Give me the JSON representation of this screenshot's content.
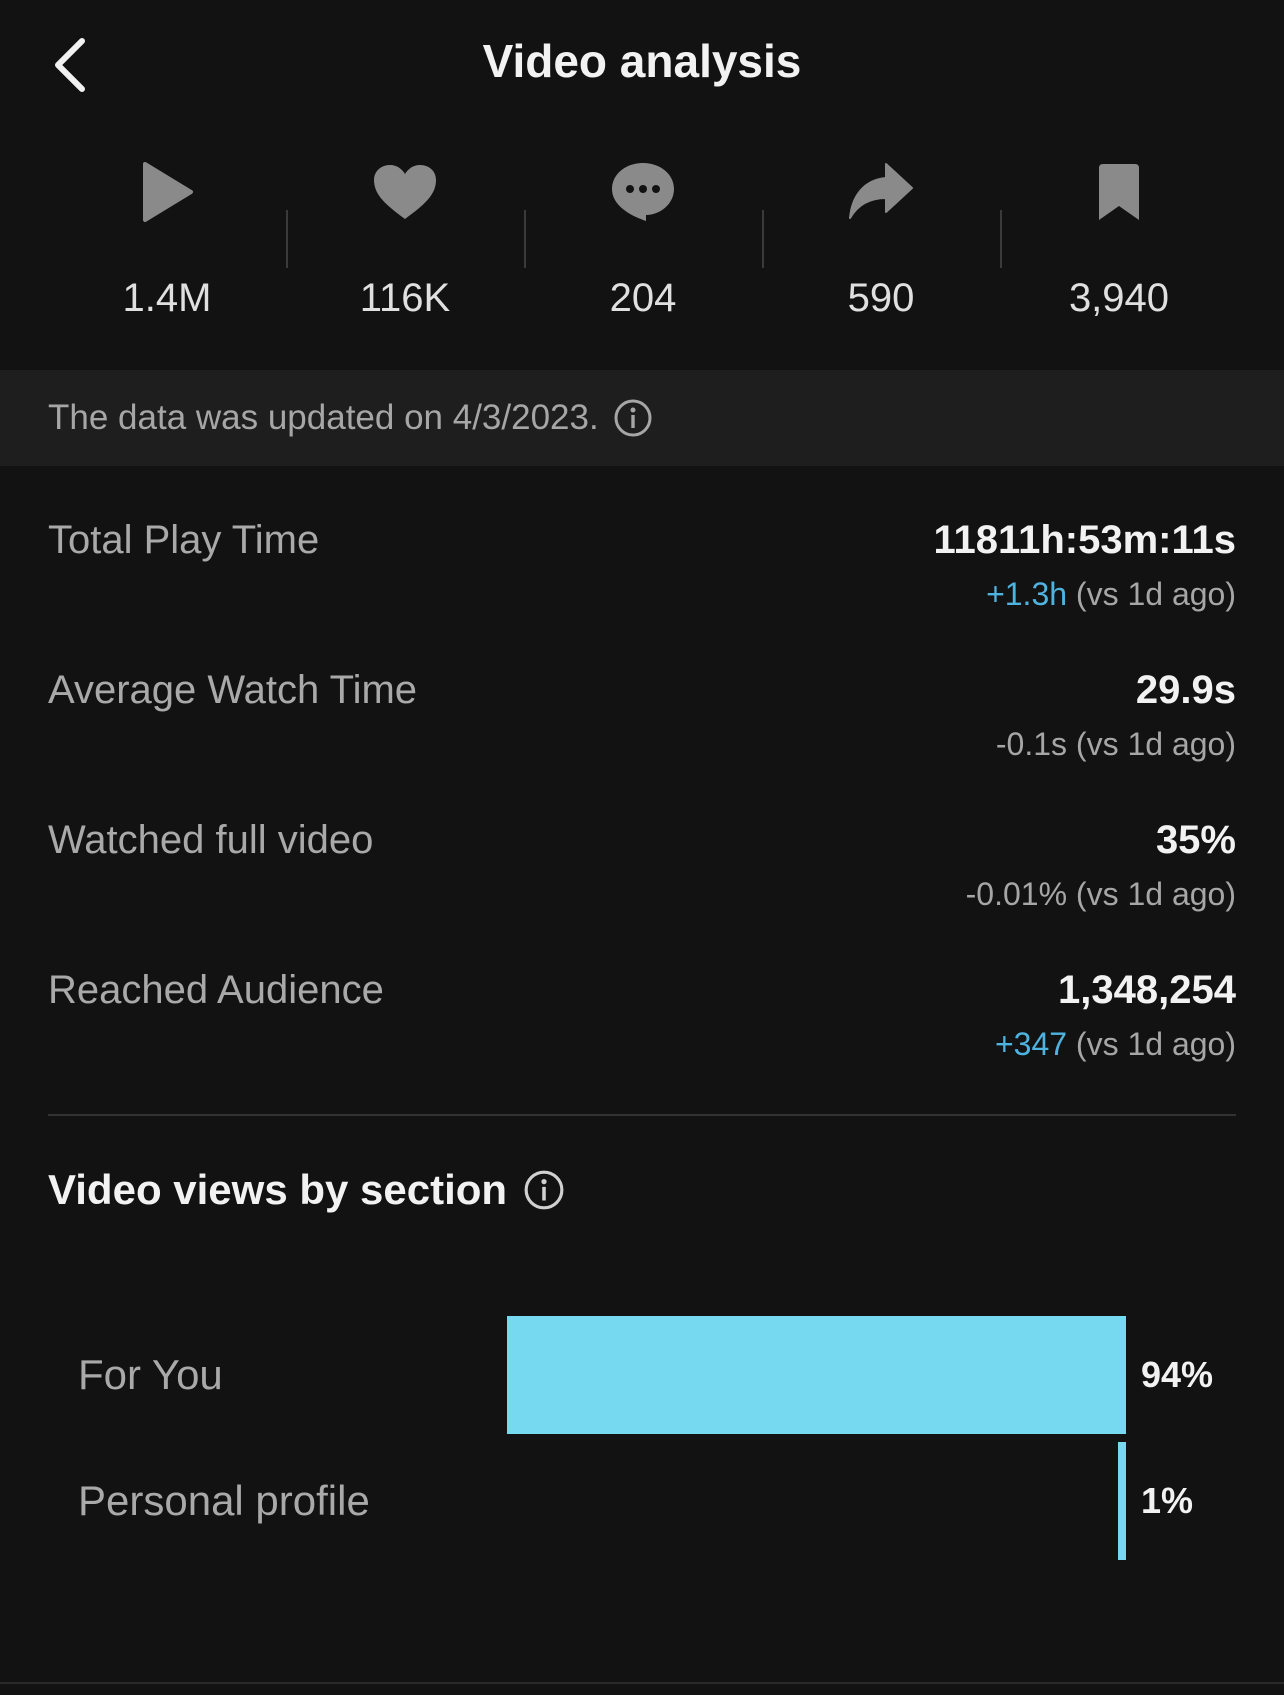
{
  "header": {
    "title": "Video analysis",
    "back_icon": "chevron-left-icon"
  },
  "stats": [
    {
      "icon": "play-icon",
      "value": "1.4M"
    },
    {
      "icon": "heart-icon",
      "value": "116K"
    },
    {
      "icon": "comment-icon",
      "value": "204"
    },
    {
      "icon": "share-icon",
      "value": "590"
    },
    {
      "icon": "bookmark-icon",
      "value": "3,940"
    }
  ],
  "notice": {
    "text": "The data was updated on 4/3/2023.",
    "icon": "info-icon"
  },
  "metrics": [
    {
      "label": "Total Play Time",
      "value": "11811h:53m:11s",
      "delta": "+1.3h",
      "delta_positive": true,
      "compare": " (vs 1d ago)"
    },
    {
      "label": "Average Watch Time",
      "value": "29.9s",
      "delta": "-0.1s",
      "delta_positive": false,
      "compare": " (vs 1d ago)"
    },
    {
      "label": "Watched full video",
      "value": "35%",
      "delta": "-0.01%",
      "delta_positive": false,
      "compare": " (vs 1d ago)"
    },
    {
      "label": "Reached Audience",
      "value": "1,348,254",
      "delta": "+347",
      "delta_positive": true,
      "compare": " (vs 1d ago)"
    }
  ],
  "section": {
    "title": "Video views by section",
    "icon": "info-icon"
  },
  "colors": {
    "background": "#121212",
    "bar": "#76d9ef",
    "positive_delta": "#4fb3e0"
  },
  "chart_data": {
    "type": "bar",
    "orientation": "horizontal",
    "categories": [
      "For You",
      "Personal profile"
    ],
    "values": [
      94,
      1
    ],
    "value_labels": [
      "94%",
      "1%"
    ],
    "unit": "%"
  }
}
